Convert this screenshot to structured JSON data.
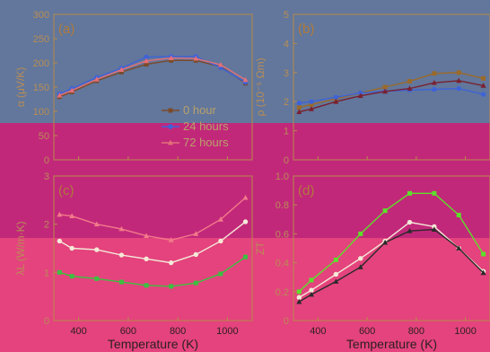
{
  "chart_data": [
    {
      "type": "line",
      "panel": "(a)",
      "ylabel": "α (μV/K)",
      "xlabel": "",
      "xlim": [
        300,
        1100
      ],
      "ylim": [
        0,
        300
      ],
      "yticks": [
        "0",
        "50",
        "100",
        "150",
        "200",
        "250",
        "300"
      ],
      "xticks": [],
      "legend": {
        "placement": "center",
        "entries": [
          "0 hour",
          "24 hours",
          "72 hours"
        ]
      },
      "series": [
        {
          "name": "0 hour",
          "color": "#7a4a2a",
          "marker": "square",
          "x": [
            323,
            373,
            473,
            573,
            673,
            773,
            873,
            973,
            1073
          ],
          "y": [
            130,
            140,
            163,
            181,
            197,
            205,
            205,
            192,
            158
          ]
        },
        {
          "name": "24 hours",
          "color": "#3e63d8",
          "marker": "circle",
          "x": [
            323,
            373,
            473,
            573,
            673,
            773,
            873,
            973,
            1073
          ],
          "y": [
            136,
            147,
            170,
            189,
            212,
            213,
            213,
            190,
            160
          ]
        },
        {
          "name": "72 hours",
          "color": "#e2707a",
          "marker": "triangle",
          "x": [
            323,
            373,
            473,
            573,
            673,
            773,
            873,
            973,
            1073
          ],
          "y": [
            133,
            143,
            166,
            186,
            204,
            210,
            209,
            196,
            165
          ]
        }
      ]
    },
    {
      "type": "line",
      "panel": "(b)",
      "ylabel": "ρ (10⁻⁵ Ωm)",
      "xlabel": "",
      "xlim": [
        300,
        1100
      ],
      "ylim": [
        0,
        5
      ],
      "yticks": [
        "0",
        "1",
        "2",
        "3",
        "4",
        "5"
      ],
      "xticks": [],
      "series": [
        {
          "name": "0 hour",
          "color": "#9a6a2a",
          "marker": "square",
          "x": [
            323,
            373,
            473,
            573,
            673,
            773,
            873,
            973,
            1073
          ],
          "y": [
            1.8,
            1.9,
            2.1,
            2.3,
            2.5,
            2.7,
            2.97,
            3.0,
            2.8
          ]
        },
        {
          "name": "24 hours",
          "color": "#3e63d8",
          "marker": "circle",
          "x": [
            323,
            373,
            473,
            573,
            673,
            773,
            873,
            973,
            1073
          ],
          "y": [
            1.95,
            2.0,
            2.15,
            2.3,
            2.35,
            2.4,
            2.42,
            2.45,
            2.25
          ]
        },
        {
          "name": "72 hours",
          "color": "#7a2030",
          "marker": "triangle",
          "x": [
            323,
            373,
            473,
            573,
            673,
            773,
            873,
            973,
            1073
          ],
          "y": [
            1.65,
            1.75,
            2.0,
            2.2,
            2.35,
            2.45,
            2.65,
            2.72,
            2.55
          ]
        }
      ]
    },
    {
      "type": "line",
      "panel": "(c)",
      "ylabel": "λL (W/m·K)",
      "xlabel": "Temperature (K)",
      "xlim": [
        300,
        1100
      ],
      "ylim": [
        0,
        3
      ],
      "yticks": [
        "0",
        "1",
        "2",
        "3"
      ],
      "xticks": [
        "400",
        "600",
        "800",
        "1000"
      ],
      "series": [
        {
          "name": "0 hour",
          "color": "#3cc040",
          "marker": "square",
          "x": [
            323,
            373,
            473,
            573,
            673,
            773,
            873,
            973,
            1073
          ],
          "y": [
            1.0,
            0.92,
            0.87,
            0.8,
            0.73,
            0.71,
            0.78,
            0.97,
            1.32
          ]
        },
        {
          "name": "24 hours",
          "color": "#f4ead8",
          "marker": "circle",
          "x": [
            323,
            373,
            473,
            573,
            673,
            773,
            873,
            973,
            1073
          ],
          "y": [
            1.65,
            1.5,
            1.47,
            1.36,
            1.28,
            1.2,
            1.37,
            1.65,
            2.05
          ]
        },
        {
          "name": "72 hours",
          "color": "#f27a8a",
          "marker": "triangle",
          "x": [
            323,
            373,
            473,
            573,
            673,
            773,
            873,
            973,
            1073
          ],
          "y": [
            2.2,
            2.17,
            2.0,
            1.9,
            1.76,
            1.67,
            1.8,
            2.1,
            2.55
          ]
        }
      ]
    },
    {
      "type": "line",
      "panel": "(d)",
      "ylabel": "ZT",
      "xlabel": "Temperature (K)",
      "xlim": [
        300,
        1100
      ],
      "ylim": [
        0,
        1.0
      ],
      "yticks": [
        "0",
        "0.2",
        "0.4",
        "0.6",
        "0.8",
        "1.0"
      ],
      "xticks": [
        "400",
        "600",
        "800",
        "1000"
      ],
      "series": [
        {
          "name": "0 hour",
          "color": "#5ce02a",
          "marker": "square",
          "x": [
            323,
            373,
            473,
            573,
            673,
            773,
            873,
            973,
            1073
          ],
          "y": [
            0.2,
            0.28,
            0.42,
            0.6,
            0.76,
            0.88,
            0.88,
            0.73,
            0.46
          ]
        },
        {
          "name": "24 hours",
          "color": "#f4ead8",
          "marker": "circle",
          "x": [
            323,
            373,
            473,
            573,
            673,
            773,
            873,
            973,
            1073
          ],
          "y": [
            0.16,
            0.21,
            0.32,
            0.43,
            0.55,
            0.68,
            0.65,
            0.5,
            0.34
          ]
        },
        {
          "name": "72 hours",
          "color": "#2a2a2a",
          "marker": "triangle",
          "x": [
            323,
            373,
            473,
            573,
            673,
            773,
            873,
            973,
            1073
          ],
          "y": [
            0.13,
            0.18,
            0.27,
            0.37,
            0.54,
            0.62,
            0.63,
            0.5,
            0.33
          ]
        }
      ]
    }
  ]
}
